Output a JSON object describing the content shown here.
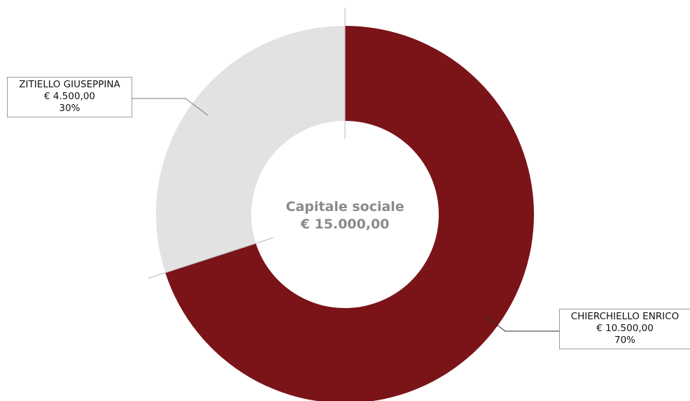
{
  "chart_data": {
    "type": "pie",
    "variant": "donut",
    "center_label": {
      "title": "Capitale sociale",
      "total": "€ 15.000,00"
    },
    "slices": [
      {
        "name": "CHIERCHIELLO ENRICO",
        "value": 10500,
        "value_label": "€ 10.500,00",
        "percent": 70,
        "percent_label": "70%",
        "color": "#7a1419"
      },
      {
        "name": "ZITIELLO GIUSEPPINA",
        "value": 4500,
        "value_label": "€ 4.500,00",
        "percent": 30,
        "percent_label": "30%",
        "color": "#e2e2e2"
      }
    ],
    "legend": "none",
    "start_angle_degrees": 0,
    "direction": "clockwise"
  }
}
